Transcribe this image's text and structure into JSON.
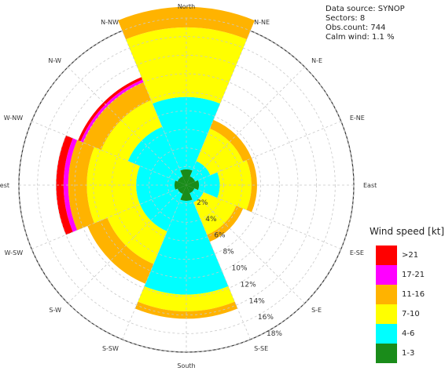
{
  "info": {
    "source": "Data source: SYNOP",
    "sectors": "Sectors: 8",
    "obs": "Obs.count: 744",
    "calm": "Calm wind: 1.1 %"
  },
  "chart_data": {
    "type": "rose",
    "directions": [
      "North",
      "N-NE",
      "N-E",
      "E-NE",
      "East",
      "E-SE",
      "S-E",
      "S-SE",
      "South",
      "S-SW",
      "S-W",
      "W-SW",
      "West",
      "W-NW",
      "N-W",
      "N-NW"
    ],
    "ring_labels": [
      "2%",
      "4%",
      "6%",
      "8%",
      "10%",
      "12%",
      "14%",
      "16%",
      "18%"
    ],
    "rmax_percent": 18,
    "sectors": [
      {
        "direction": "North",
        "center_deg": 0,
        "cumulative": [
          1.4,
          9.5,
          17.0,
          19.2,
          19.2,
          19.2
        ]
      },
      {
        "direction": "N-E",
        "center_deg": 45,
        "cumulative": [
          0.6,
          2.8,
          6.6,
          7.6,
          7.6,
          7.6
        ]
      },
      {
        "direction": "East",
        "center_deg": 90,
        "cumulative": [
          1.0,
          3.6,
          7.0,
          7.6,
          7.6,
          7.6
        ]
      },
      {
        "direction": "S-E",
        "center_deg": 135,
        "cumulative": [
          0.5,
          2.0,
          5.8,
          6.6,
          6.6,
          6.6
        ]
      },
      {
        "direction": "South",
        "center_deg": 180,
        "cumulative": [
          1.4,
          11.8,
          13.6,
          14.4,
          14.4,
          14.4
        ]
      },
      {
        "direction": "S-W",
        "center_deg": 225,
        "cumulative": [
          0.6,
          5.4,
          9.2,
          11.5,
          11.5,
          11.5
        ]
      },
      {
        "direction": "West",
        "center_deg": 270,
        "cumulative": [
          0.9,
          5.4,
          10.7,
          12.7,
          13.2,
          14.0
        ]
      },
      {
        "direction": "N-W",
        "center_deg": 315,
        "cumulative": [
          0.6,
          6.8,
          9.9,
          12.0,
          12.3,
          12.6
        ]
      }
    ],
    "speed_classes": [
      "1-3",
      "4-6",
      "7-10",
      "11-16",
      "17-21",
      ">21"
    ],
    "colors": [
      "#1a8c1a",
      "#00ffff",
      "#ffff00",
      "#ffb300",
      "#ff00ff",
      "#ff0000"
    ]
  },
  "legend": {
    "title": "Wind speed [kt]",
    "items": [
      {
        "label": ">21",
        "color": "#ff0000"
      },
      {
        "label": "17-21",
        "color": "#ff00ff"
      },
      {
        "label": "11-16",
        "color": "#ffb300"
      },
      {
        "label": "7-10",
        "color": "#ffff00"
      },
      {
        "label": "4-6",
        "color": "#00ffff"
      },
      {
        "label": "1-3",
        "color": "#1a8c1a"
      }
    ]
  }
}
